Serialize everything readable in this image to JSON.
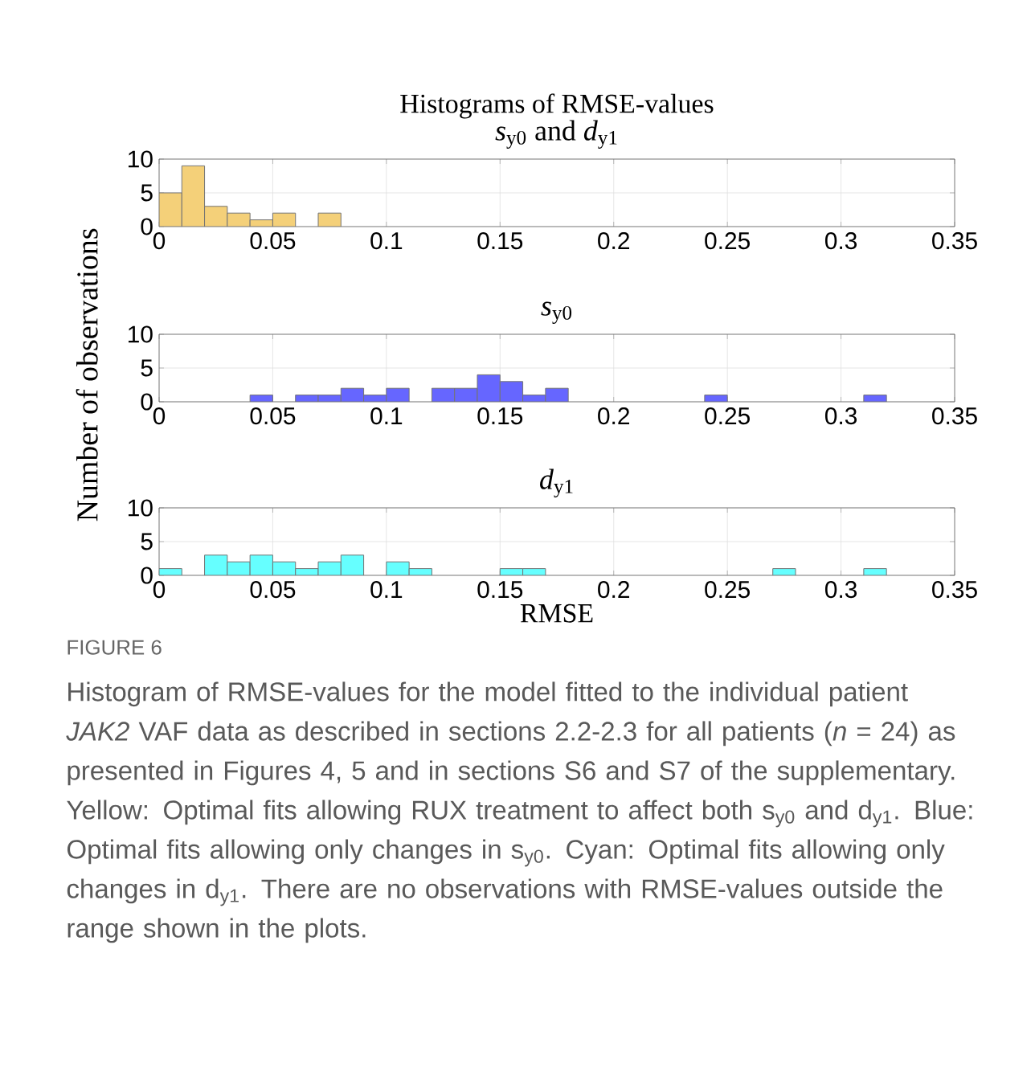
{
  "chart_data": [
    {
      "type": "histogram",
      "title": "Histograms of RMSE-values",
      "subtitle": "*s*$_{y0}$ and *d*$_{y1}$",
      "color": "#f4d079",
      "bins": [
        0,
        0.01,
        0.02,
        0.03,
        0.04,
        0.05,
        0.06,
        0.07,
        0.08
      ],
      "values": [
        5,
        9,
        3,
        2,
        1,
        2,
        0,
        2
      ],
      "xlim": [
        0,
        0.35
      ],
      "xticks": [
        0,
        0.05,
        0.1,
        0.15,
        0.2,
        0.25,
        0.3,
        0.35
      ],
      "ylim": [
        0,
        10
      ],
      "yticks": [
        0,
        5,
        10
      ],
      "grid": true
    },
    {
      "type": "histogram",
      "title": "*s*$_{y0}$",
      "ylabel": "Number of observations",
      "color": "#6666ff",
      "bins": [
        0.04,
        0.05,
        0.06,
        0.07,
        0.08,
        0.09,
        0.1,
        0.11,
        0.12,
        0.13,
        0.14,
        0.15,
        0.16,
        0.17,
        0.18,
        0.19,
        0.2,
        0.21,
        0.22,
        0.23,
        0.24,
        0.25,
        0.26,
        0.27,
        0.28,
        0.29,
        0.3,
        0.31,
        0.32
      ],
      "values": [
        1,
        0,
        1,
        1,
        2,
        1,
        2,
        0,
        2,
        2,
        4,
        3,
        1,
        2,
        0,
        0,
        0,
        0,
        0,
        0,
        1,
        0,
        0,
        0,
        0,
        0,
        0,
        1
      ],
      "xlim": [
        0,
        0.35
      ],
      "xticks": [
        0,
        0.05,
        0.1,
        0.15,
        0.2,
        0.25,
        0.3,
        0.35
      ],
      "ylim": [
        0,
        10
      ],
      "yticks": [
        0,
        5,
        10
      ],
      "grid": true
    },
    {
      "type": "histogram",
      "title": "*d*$_{y1}$",
      "xlabel": "RMSE",
      "color": "#66ffff",
      "bins": [
        0,
        0.01,
        0.02,
        0.03,
        0.04,
        0.05,
        0.06,
        0.07,
        0.08,
        0.09,
        0.1,
        0.11,
        0.12,
        0.13,
        0.14,
        0.15,
        0.16,
        0.17,
        0.18,
        0.19,
        0.2,
        0.21,
        0.22,
        0.23,
        0.24,
        0.25,
        0.26,
        0.27,
        0.28,
        0.29,
        0.3,
        0.31,
        0.32
      ],
      "values": [
        1,
        0,
        3,
        2,
        3,
        2,
        1,
        2,
        3,
        0,
        2,
        1,
        0,
        0,
        0,
        1,
        1,
        0,
        0,
        0,
        0,
        0,
        0,
        0,
        0,
        0,
        0,
        1,
        0,
        0,
        0,
        1
      ],
      "xlim": [
        0,
        0.35
      ],
      "xticks": [
        0,
        0.05,
        0.1,
        0.15,
        0.2,
        0.25,
        0.3,
        0.35
      ],
      "ylim": [
        0,
        10
      ],
      "yticks": [
        0,
        5,
        10
      ],
      "grid": true,
      "annotations": [
        "FIGURE 6",
        "Histogram of RMSE-values for the model fitted to the individual patient *JAK2* VAF data as described in sections 2.2-2.3 for all patients (*n* = 24) as presented in Figures 4, 5 and in sections S6 and S7 of the supplementary. Yellow: Optimal fits allowing RUX treatment to affect both s$_{y0}$ and d$_{y1}$. Blue: Optimal fits allowing only changes in s$_{y0}$. Cyan: Optimal fits allowing only changes in d$_{y1}$. There are no observations with RMSE-values outside the range shown in the plots."
      ]
    }
  ]
}
